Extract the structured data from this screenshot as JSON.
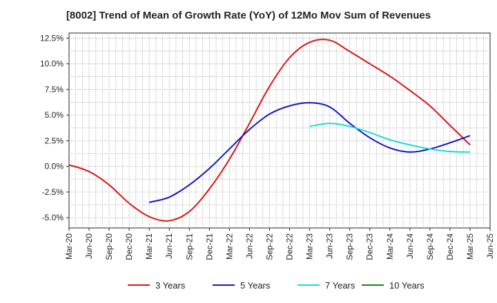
{
  "chart_data": {
    "type": "line",
    "title": "[8002]  Trend of Mean of Growth Rate (YoY) of 12Mo Mov Sum of Revenues",
    "xlabel": "",
    "ylabel": "",
    "ylim": [
      -6.0,
      13.0
    ],
    "grid": true,
    "legend_position": "bottom",
    "x_ticks": [
      "Mar-20",
      "Jun-20",
      "Sep-20",
      "Dec-20",
      "Mar-21",
      "Jun-21",
      "Sep-21",
      "Dec-21",
      "Mar-22",
      "Jun-22",
      "Sep-22",
      "Dec-22",
      "Mar-23",
      "Jun-23",
      "Sep-23",
      "Dec-23",
      "Mar-24",
      "Jun-24",
      "Sep-24",
      "Dec-24",
      "Mar-25",
      "Jun-25"
    ],
    "y_ticks": [
      {
        "value": 12.5,
        "label": "12.5%"
      },
      {
        "value": 10.0,
        "label": "10.0%"
      },
      {
        "value": 7.5,
        "label": "7.5%"
      },
      {
        "value": 5.0,
        "label": "5.0%"
      },
      {
        "value": 2.5,
        "label": "2.5%"
      },
      {
        "value": 0.0,
        "label": "0.0%"
      },
      {
        "value": -2.5,
        "label": "-2.5%"
      },
      {
        "value": -5.0,
        "label": "-5.0%"
      }
    ],
    "series": [
      {
        "name": "3 Years",
        "color": "#dd1111",
        "points": [
          [
            0,
            0.15
          ],
          [
            1,
            -0.5
          ],
          [
            2,
            -1.8
          ],
          [
            3,
            -3.6
          ],
          [
            4,
            -4.9
          ],
          [
            5,
            -5.3
          ],
          [
            6,
            -4.4
          ],
          [
            7,
            -2.2
          ],
          [
            8,
            0.7
          ],
          [
            9,
            4.2
          ],
          [
            10,
            7.8
          ],
          [
            11,
            10.6
          ],
          [
            12,
            12.1
          ],
          [
            13,
            12.3
          ],
          [
            14,
            11.2
          ],
          [
            15,
            10.0
          ],
          [
            16,
            8.8
          ],
          [
            17,
            7.4
          ],
          [
            18,
            5.9
          ],
          [
            19,
            4.0
          ],
          [
            20,
            2.1
          ]
        ]
      },
      {
        "name": "5 Years",
        "color": "#1111cc",
        "points": [
          [
            4,
            -3.5
          ],
          [
            5,
            -3.0
          ],
          [
            6,
            -1.8
          ],
          [
            7,
            -0.2
          ],
          [
            8,
            1.7
          ],
          [
            9,
            3.6
          ],
          [
            10,
            5.1
          ],
          [
            11,
            5.9
          ],
          [
            12,
            6.2
          ],
          [
            13,
            5.8
          ],
          [
            14,
            4.2
          ],
          [
            15,
            2.8
          ],
          [
            16,
            1.8
          ],
          [
            17,
            1.4
          ],
          [
            18,
            1.7
          ],
          [
            19,
            2.3
          ],
          [
            20,
            3.0
          ]
        ]
      },
      {
        "name": "7 Years",
        "color": "#11dddd",
        "points": [
          [
            12,
            3.9
          ],
          [
            13,
            4.2
          ],
          [
            14,
            3.9
          ],
          [
            15,
            3.3
          ],
          [
            16,
            2.6
          ],
          [
            17,
            2.1
          ],
          [
            18,
            1.7
          ],
          [
            19,
            1.45
          ],
          [
            20,
            1.4
          ]
        ]
      },
      {
        "name": "10 Years",
        "color": "#118811",
        "points": []
      }
    ]
  }
}
